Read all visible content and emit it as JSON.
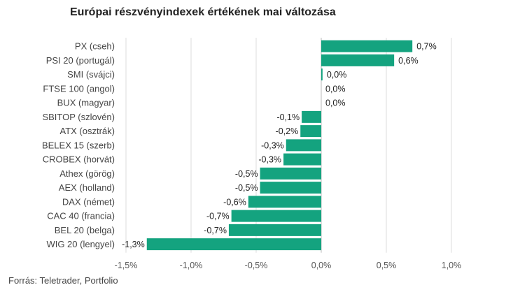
{
  "chart_data": {
    "type": "bar",
    "orientation": "horizontal",
    "title": "Európai részvényindexek értékének mai változása",
    "categories": [
      "PX (cseh)",
      "PSI 20 (portugál)",
      "SMI (svájci)",
      "FTSE 100 (angol)",
      "BUX (magyar)",
      "SBITOP (szlovén)",
      "ATX (osztrák)",
      "BELEX 15 (szerb)",
      "CROBEX (horvát)",
      "Athex (görög)",
      "AEX (holland)",
      "DAX (német)",
      "CAC 40 (francia)",
      "BEL 20 (belga)",
      "WIG 20 (lengyel)"
    ],
    "values": [
      0.7,
      0.56,
      0.01,
      0.0,
      0.0,
      -0.15,
      -0.16,
      -0.27,
      -0.29,
      -0.47,
      -0.47,
      -0.56,
      -0.69,
      -0.71,
      -1.34
    ],
    "value_labels": [
      "0,7%",
      "0,6%",
      "0,0%",
      "0,0%",
      "0,0%",
      "-0,1%",
      "-0,2%",
      "-0,3%",
      "-0,3%",
      "-0,5%",
      "-0,5%",
      "-0,6%",
      "-0,7%",
      "-0,7%",
      "-1,3%"
    ],
    "xlim": [
      -1.5,
      1.0
    ],
    "xticks": [
      -1.5,
      -1.0,
      -0.5,
      0.0,
      0.5,
      1.0
    ],
    "xtick_labels": [
      "-1,5%",
      "-1,0%",
      "-0,5%",
      "0,0%",
      "0,5%",
      "1,0%"
    ],
    "grid": "vertical",
    "legend": "none",
    "bar_color": "#14a37f",
    "source": "Forrás: Teletrader, Portfolio"
  }
}
